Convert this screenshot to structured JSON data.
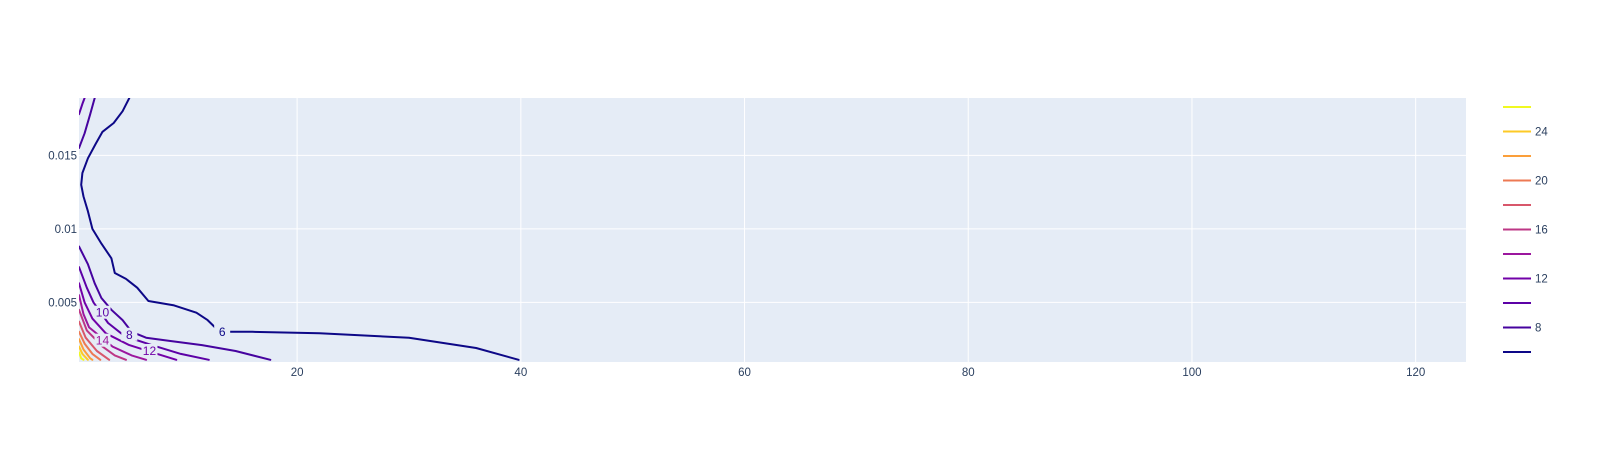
{
  "chart_data": {
    "type": "contour",
    "title": "",
    "xlabel": "",
    "ylabel": "",
    "xlim": [
      0.5,
      124.5
    ],
    "ylim": [
      0.00095,
      0.0189
    ],
    "x_ticks": [
      {
        "value": 20,
        "label": "20"
      },
      {
        "value": 40,
        "label": "40"
      },
      {
        "value": 60,
        "label": "60"
      },
      {
        "value": 80,
        "label": "80"
      },
      {
        "value": 100,
        "label": "100"
      },
      {
        "value": 120,
        "label": "120"
      }
    ],
    "y_ticks": [
      {
        "value": 0.005,
        "label": "0.005"
      },
      {
        "value": 0.01,
        "label": "0.01"
      },
      {
        "value": 0.015,
        "label": "0.015"
      }
    ],
    "grid": true,
    "background_color": "#e5ecf6",
    "colorscale": "plasma",
    "legend_position": "right",
    "legend_levels": [
      {
        "value": 26,
        "label": "",
        "color": "#f0f921"
      },
      {
        "value": 24,
        "label": "24",
        "color": "#fdca26"
      },
      {
        "value": 22,
        "label": "",
        "color": "#fb9f3a"
      },
      {
        "value": 20,
        "label": "20",
        "color": "#ed7953"
      },
      {
        "value": 18,
        "label": "",
        "color": "#d8576b"
      },
      {
        "value": 16,
        "label": "16",
        "color": "#bd3786"
      },
      {
        "value": 14,
        "label": "",
        "color": "#9c179e"
      },
      {
        "value": 12,
        "label": "12",
        "color": "#7201a8"
      },
      {
        "value": 10,
        "label": "",
        "color": "#5c01a6"
      },
      {
        "value": 8,
        "label": "8",
        "color": "#46039f"
      },
      {
        "value": 6,
        "label": "",
        "color": "#0d0887"
      }
    ],
    "contours": [
      {
        "level": 6,
        "color": "#0d0887",
        "label": "6",
        "label_at": [
          13.3,
          0.003
        ],
        "points": [
          [
            5.0,
            0.0189
          ],
          [
            4.4,
            0.018
          ],
          [
            3.6,
            0.0172
          ],
          [
            2.6,
            0.0166
          ],
          [
            2.0,
            0.0158
          ],
          [
            1.3,
            0.0148
          ],
          [
            0.8,
            0.0138
          ],
          [
            0.7,
            0.013
          ],
          [
            0.9,
            0.0122
          ],
          [
            1.3,
            0.0112
          ],
          [
            1.7,
            0.01
          ],
          [
            2.5,
            0.009
          ],
          [
            3.4,
            0.008
          ],
          [
            3.7,
            0.007
          ],
          [
            4.7,
            0.0066
          ],
          [
            5.7,
            0.006
          ],
          [
            6.7,
            0.0051
          ],
          [
            9.0,
            0.0048
          ],
          [
            11.0,
            0.0043
          ],
          [
            12.0,
            0.0038
          ],
          [
            12.8,
            0.0032
          ],
          [
            13.5,
            0.003
          ],
          [
            16.0,
            0.003
          ],
          [
            22.0,
            0.0029
          ],
          [
            30.0,
            0.0026
          ],
          [
            36.0,
            0.0019
          ],
          [
            39.8,
            0.0011
          ]
        ]
      },
      {
        "level": 8,
        "color": "#46039f",
        "label": "8",
        "label_at": [
          5.0,
          0.0028
        ],
        "points": [
          [
            0.5,
            0.0155
          ],
          [
            1.0,
            0.0165
          ],
          [
            1.5,
            0.0178
          ],
          [
            1.9,
            0.0189
          ]
        ]
      },
      {
        "level": 8,
        "color": "#46039f",
        "label": "",
        "label_at": null,
        "points": [
          [
            0.5,
            0.0088
          ],
          [
            1.3,
            0.0076
          ],
          [
            1.9,
            0.0063
          ],
          [
            2.5,
            0.0053
          ],
          [
            3.4,
            0.0045
          ],
          [
            4.4,
            0.0038
          ],
          [
            5.2,
            0.003
          ],
          [
            6.5,
            0.0026
          ],
          [
            8.5,
            0.0024
          ],
          [
            11.5,
            0.0021
          ],
          [
            14.5,
            0.0017
          ],
          [
            17.6,
            0.0011
          ]
        ]
      },
      {
        "level": 10,
        "color": "#5c01a6",
        "label": "10",
        "label_at": [
          2.6,
          0.0043
        ],
        "points": [
          [
            0.5,
            0.0178
          ],
          [
            0.8,
            0.0185
          ],
          [
            1.0,
            0.0189
          ]
        ]
      },
      {
        "level": 10,
        "color": "#5c01a6",
        "label": "",
        "label_at": null,
        "points": [
          [
            0.5,
            0.0074
          ],
          [
            1.2,
            0.006
          ],
          [
            1.8,
            0.005
          ],
          [
            3.1,
            0.0036
          ],
          [
            4.6,
            0.0027
          ],
          [
            7.0,
            0.0021
          ],
          [
            9.6,
            0.0015
          ],
          [
            12.1,
            0.0011
          ]
        ]
      },
      {
        "level": 12,
        "color": "#7201a8",
        "label": "12",
        "label_at": [
          6.8,
          0.0017
        ],
        "points": [
          [
            0.5,
            0.0063
          ],
          [
            1.0,
            0.005
          ],
          [
            1.7,
            0.0039
          ],
          [
            2.9,
            0.0029
          ],
          [
            5.0,
            0.0021
          ],
          [
            7.5,
            0.0015
          ],
          [
            9.2,
            0.0011
          ]
        ]
      },
      {
        "level": 14,
        "color": "#9c179e",
        "label": "14",
        "label_at": [
          2.6,
          0.0024
        ],
        "points": [
          [
            0.5,
            0.0055
          ],
          [
            0.9,
            0.0042
          ],
          [
            1.4,
            0.0033
          ],
          [
            3.5,
            0.002
          ],
          [
            5.2,
            0.0014
          ],
          [
            6.5,
            0.0011
          ]
        ]
      },
      {
        "level": 16,
        "color": "#bd3786",
        "label": "",
        "label_at": null,
        "points": [
          [
            0.5,
            0.0045
          ],
          [
            1.2,
            0.0031
          ],
          [
            2.6,
            0.002
          ],
          [
            3.7,
            0.0014
          ],
          [
            4.7,
            0.0011
          ]
        ]
      },
      {
        "level": 18,
        "color": "#d8576b",
        "label": "",
        "label_at": null,
        "points": [
          [
            0.5,
            0.0037
          ],
          [
            1.1,
            0.0026
          ],
          [
            2.1,
            0.0017
          ],
          [
            3.2,
            0.0011
          ]
        ]
      },
      {
        "level": 20,
        "color": "#ed7953",
        "label": "",
        "label_at": null,
        "points": [
          [
            0.5,
            0.003
          ],
          [
            1.0,
            0.0022
          ],
          [
            1.7,
            0.0015
          ],
          [
            2.4,
            0.0011
          ]
        ]
      },
      {
        "level": 22,
        "color": "#fb9f3a",
        "label": "",
        "label_at": null,
        "points": [
          [
            0.5,
            0.0025
          ],
          [
            0.9,
            0.0018
          ],
          [
            1.5,
            0.0012
          ],
          [
            1.7,
            0.0011
          ]
        ]
      },
      {
        "level": 24,
        "color": "#fdca26",
        "label": "",
        "label_at": null,
        "points": [
          [
            0.5,
            0.002
          ],
          [
            0.8,
            0.0015
          ],
          [
            1.3,
            0.0011
          ]
        ]
      },
      {
        "level": 26,
        "color": "#f0f921",
        "label": "",
        "label_at": null,
        "points": [
          [
            0.5,
            0.0016
          ],
          [
            0.7,
            0.0012
          ],
          [
            0.9,
            0.0011
          ]
        ]
      }
    ]
  }
}
